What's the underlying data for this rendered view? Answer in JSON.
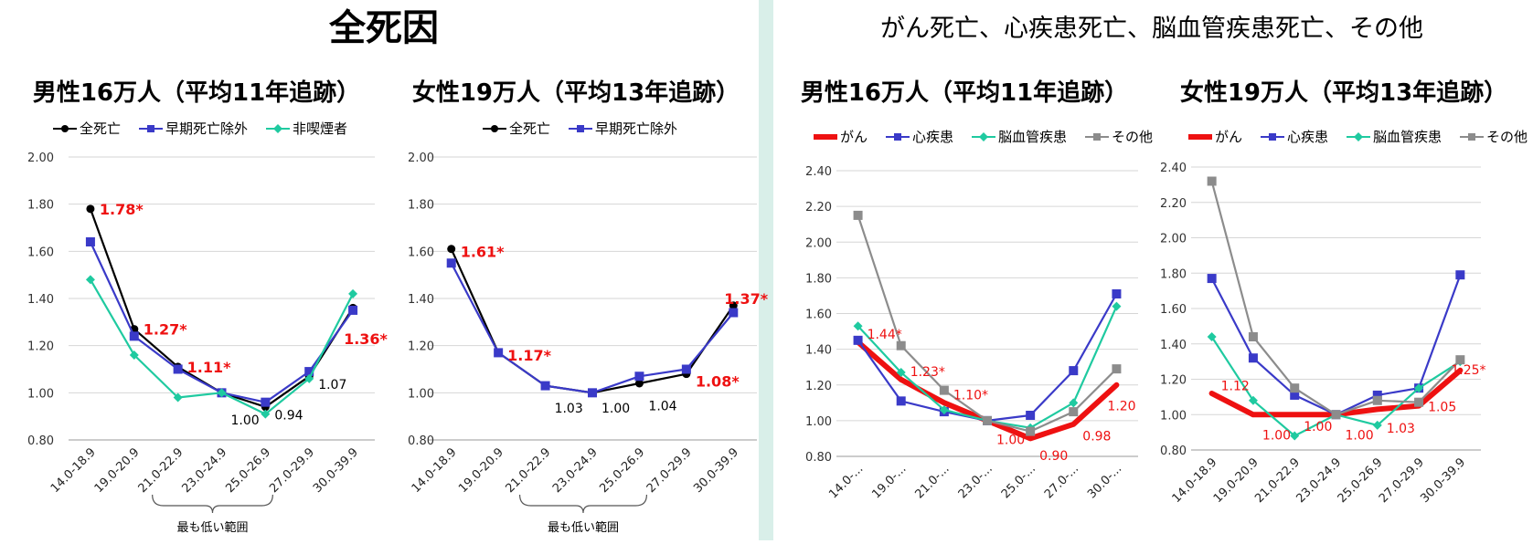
{
  "left_title": "全死因",
  "right_title": "がん死亡、心疾患死亡、脳血管疾患死亡、その他",
  "bracket_label": "最も低い範囲",
  "colors": {
    "black": "#000000",
    "blue": "#3a3ac8",
    "teal": "#1fcaa0",
    "red": "#ee1111",
    "gray": "#8c8c8c",
    "divider": "#d9efe9",
    "annot_red": "#ee1111"
  },
  "chart_data": [
    {
      "type": "line",
      "title": "男性16万人（平均11年追跡）",
      "categories": [
        "14.0-18.9",
        "19.0-20.9",
        "21.0-22.9",
        "23.0-24.9",
        "25.0-26.9",
        "27.0-29.9",
        "30.0-39.9"
      ],
      "ylim": [
        0.8,
        2.0
      ],
      "yticks": [
        "0.80",
        "1.00",
        "1.20",
        "1.40",
        "1.60",
        "1.80",
        "2.00"
      ],
      "series": [
        {
          "name": "全死亡",
          "color": "black",
          "values": [
            1.78,
            1.27,
            1.11,
            1.0,
            0.94,
            1.07,
            1.36
          ]
        },
        {
          "name": "早期死亡除外",
          "color": "blue",
          "values": [
            1.64,
            1.24,
            1.1,
            1.0,
            0.96,
            1.09,
            1.35
          ]
        },
        {
          "name": "非喫煙者",
          "color": "teal",
          "values": [
            1.48,
            1.16,
            0.98,
            1.0,
            0.91,
            1.06,
            1.42
          ]
        }
      ],
      "annotations": [
        {
          "text": "1.78*",
          "i": 0,
          "v": 1.78,
          "color": "red",
          "bold": true
        },
        {
          "text": "1.27*",
          "i": 1,
          "v": 1.27,
          "color": "red",
          "bold": true
        },
        {
          "text": "1.11*",
          "i": 2,
          "v": 1.11,
          "color": "red",
          "bold": true
        },
        {
          "text": "1.00",
          "i": 3,
          "v": 0.89,
          "color": "black"
        },
        {
          "text": "0.94",
          "i": 4,
          "v": 0.91,
          "color": "black"
        },
        {
          "text": "1.07",
          "i": 5,
          "v": 1.04,
          "color": "black"
        },
        {
          "text": "1.36*",
          "i": 6,
          "v": 1.23,
          "color": "red",
          "bold": true
        }
      ],
      "bracket": [
        2,
        4
      ]
    },
    {
      "type": "line",
      "title": "女性19万人（平均13年追跡）",
      "categories": [
        "14.0-18.9",
        "19.0-20.9",
        "21.0-22.9",
        "23.0-24.9",
        "25.0-26.9",
        "27.0-29.9",
        "30.0-39.9"
      ],
      "ylim": [
        0.8,
        2.0
      ],
      "yticks": [
        "0.80",
        "1.00",
        "1.20",
        "1.40",
        "1.60",
        "1.80",
        "2.00"
      ],
      "series": [
        {
          "name": "全死亡",
          "color": "black",
          "values": [
            1.61,
            1.17,
            1.03,
            1.0,
            1.04,
            1.08,
            1.37
          ]
        },
        {
          "name": "早期死亡除外",
          "color": "blue",
          "values": [
            1.55,
            1.17,
            1.03,
            1.0,
            1.07,
            1.1,
            1.34
          ]
        }
      ],
      "annotations": [
        {
          "text": "1.61*",
          "i": 0,
          "v": 1.6,
          "color": "red",
          "bold": true
        },
        {
          "text": "1.17*",
          "i": 1,
          "v": 1.16,
          "color": "red",
          "bold": true
        },
        {
          "text": "1.03",
          "i": 2,
          "v": 0.94,
          "color": "black"
        },
        {
          "text": "1.00",
          "i": 3,
          "v": 0.94,
          "color": "black"
        },
        {
          "text": "1.04",
          "i": 4,
          "v": 0.95,
          "color": "black"
        },
        {
          "text": "1.08*",
          "i": 5,
          "v": 1.05,
          "color": "red",
          "bold": true
        },
        {
          "text": "1.37*",
          "i": 6,
          "v": 1.4,
          "color": "red",
          "bold": true
        }
      ],
      "bracket": [
        2,
        4
      ]
    },
    {
      "type": "line",
      "title": "男性16万人（平均11年追跡）",
      "categories": [
        "14.0-...",
        "19.0-...",
        "21.0-...",
        "23.0-...",
        "25.0-...",
        "27.0-...",
        "30.0-..."
      ],
      "ylim": [
        0.8,
        2.4
      ],
      "yticks": [
        "0.80",
        "1.00",
        "1.20",
        "1.40",
        "1.60",
        "1.80",
        "2.00",
        "2.20",
        "2.40"
      ],
      "series": [
        {
          "name": "がん",
          "color": "red",
          "values": [
            1.44,
            1.23,
            1.1,
            1.0,
            0.9,
            0.98,
            1.2
          ]
        },
        {
          "name": "心疾患",
          "color": "blue",
          "values": [
            1.45,
            1.11,
            1.05,
            1.0,
            1.03,
            1.28,
            1.71
          ]
        },
        {
          "name": "脳血管疾患",
          "color": "teal",
          "values": [
            1.53,
            1.27,
            1.06,
            1.0,
            0.96,
            1.1,
            1.64
          ]
        },
        {
          "name": "その他",
          "color": "gray",
          "values": [
            2.15,
            1.42,
            1.17,
            1.0,
            0.94,
            1.05,
            1.29
          ]
        }
      ],
      "annotations": [
        {
          "text": "1.44*",
          "i": 0,
          "v": 1.49,
          "color": "red"
        },
        {
          "text": "1.23*",
          "i": 1,
          "v": 1.28,
          "color": "red"
        },
        {
          "text": "1.10*",
          "i": 2,
          "v": 1.15,
          "color": "red"
        },
        {
          "text": "1.00",
          "i": 3,
          "v": 0.9,
          "color": "red"
        },
        {
          "text": "0.90",
          "i": 4,
          "v": 0.81,
          "color": "red"
        },
        {
          "text": "0.98",
          "i": 5,
          "v": 0.92,
          "color": "red"
        },
        {
          "text": "1.20",
          "i": 6,
          "v": 1.09,
          "color": "red"
        }
      ]
    },
    {
      "type": "line",
      "title": "女性19万人（平均13年追跡）",
      "categories": [
        "14.0-18.9",
        "19.0-20.9",
        "21.0-22.9",
        "23.0-24.9",
        "25.0-26.9",
        "27.0-29.9",
        "30.0-39.9"
      ],
      "ylim": [
        0.8,
        2.4
      ],
      "yticks": [
        "0.80",
        "1.00",
        "1.20",
        "1.40",
        "1.60",
        "1.80",
        "2.00",
        "2.20",
        "2.40"
      ],
      "series": [
        {
          "name": "がん",
          "color": "red",
          "values": [
            1.12,
            1.0,
            1.0,
            1.0,
            1.03,
            1.05,
            1.25
          ]
        },
        {
          "name": "心疾患",
          "color": "blue",
          "values": [
            1.77,
            1.32,
            1.11,
            1.0,
            1.11,
            1.15,
            1.79
          ]
        },
        {
          "name": "脳血管疾患",
          "color": "teal",
          "values": [
            1.44,
            1.08,
            0.88,
            1.0,
            0.94,
            1.15,
            1.3
          ]
        },
        {
          "name": "その他",
          "color": "gray",
          "values": [
            2.32,
            1.44,
            1.15,
            1.0,
            1.08,
            1.07,
            1.31
          ]
        }
      ],
      "annotations": [
        {
          "text": "1.12",
          "i": 0,
          "v": 1.17,
          "color": "red"
        },
        {
          "text": "1.00",
          "i": 1,
          "v": 0.89,
          "color": "red"
        },
        {
          "text": "1.00",
          "i": 2,
          "v": 0.94,
          "color": "red"
        },
        {
          "text": "1.00",
          "i": 3,
          "v": 0.89,
          "color": "red"
        },
        {
          "text": "1.03",
          "i": 4,
          "v": 0.93,
          "color": "red"
        },
        {
          "text": "1.05",
          "i": 5,
          "v": 1.05,
          "color": "red"
        },
        {
          "text": "1.25*",
          "i": 6,
          "v": 1.26,
          "color": "red"
        }
      ]
    }
  ]
}
